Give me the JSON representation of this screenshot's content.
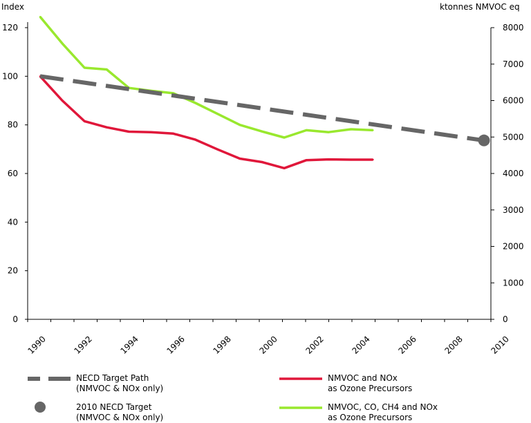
{
  "chart_data": {
    "type": "line",
    "left_axis_title": "Index",
    "right_axis_title": "ktonnes NMVOC eq",
    "left_ylim": [
      0,
      120
    ],
    "left_yticks": [
      "0",
      "20",
      "40",
      "60",
      "80",
      "100",
      "120"
    ],
    "right_ylim": [
      0,
      8000
    ],
    "right_yticks": [
      "0",
      "1000",
      "2000",
      "3000",
      "4000",
      "5000",
      "6000",
      "7000",
      "8000"
    ],
    "xlim": [
      1990,
      2010
    ],
    "xticks": [
      "1990",
      "1992",
      "1994",
      "1996",
      "1998",
      "2000",
      "2002",
      "2004",
      "2006",
      "2008",
      "2010"
    ],
    "grid": false,
    "series": [
      {
        "name": "NMVOC, CO, CH4 and NOx as Ozone Precursors",
        "color": "#99e82e",
        "style": "solid",
        "x": [
          1990,
          1991,
          1992,
          1993,
          1994,
          1995,
          1996,
          1997,
          1998,
          1999,
          2000,
          2001,
          2002,
          2003,
          2004,
          2005
        ],
        "values": [
          124.5,
          113.5,
          103.5,
          102.8,
          95.2,
          94.0,
          93.0,
          89.0,
          84.5,
          80.0,
          77.3,
          74.8,
          77.8,
          77.0,
          78.2,
          77.8
        ]
      },
      {
        "name": "NMVOC and NOx as Ozone Precursors",
        "color": "#e0173a",
        "style": "solid",
        "x": [
          1990,
          1991,
          1992,
          1993,
          1994,
          1995,
          1996,
          1997,
          1998,
          1999,
          2000,
          2001,
          2002,
          2003,
          2004,
          2005
        ],
        "values": [
          100.0,
          90.0,
          81.5,
          79.0,
          77.2,
          77.0,
          76.4,
          73.9,
          69.9,
          66.1,
          64.7,
          62.2,
          65.5,
          65.8,
          65.7,
          65.7
        ]
      },
      {
        "name": "NECD Target Path (NMVOC & NOx only)",
        "color": "#666666",
        "style": "dashed",
        "x": [
          1990,
          2010
        ],
        "values": [
          100.0,
          73.6
        ]
      }
    ],
    "target_point": {
      "name": "2010 NECD Target (NMVOC & NOx only)",
      "x": 2010,
      "value": 73.6,
      "color": "#666666"
    },
    "legend": [
      {
        "key": "target-path",
        "line1": "NECD Target Path",
        "line2": "(NMVOC & NOx only)"
      },
      {
        "key": "target-point",
        "line1": "2010 NECD Target",
        "line2": "(NMVOC & NOx only)"
      },
      {
        "key": "red",
        "line1": "NMVOC and NOx",
        "line2": "as Ozone Precursors"
      },
      {
        "key": "green",
        "line1": "NMVOC, CO, CH4 and NOx",
        "line2": "as Ozone Precursors"
      }
    ]
  }
}
